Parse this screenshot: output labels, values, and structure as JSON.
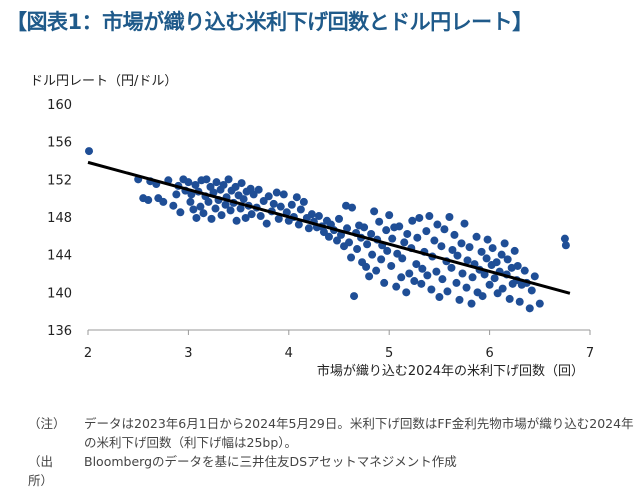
{
  "title": "【図表1：市場が織り込む米利下げ回数とドル円レート】",
  "chart_data": {
    "type": "scatter",
    "ylabel": "ドル円レート（円/ドル）",
    "xlabel": "市場が織り込む2024年の米利下げ回数（回）",
    "xlim": [
      2,
      7
    ],
    "ylim": [
      136,
      160
    ],
    "xticks": [
      2,
      3,
      4,
      5,
      6,
      7
    ],
    "yticks": [
      136,
      140,
      144,
      148,
      152,
      156,
      160
    ],
    "grid": false,
    "point_color": "#1f4e96",
    "trendline": {
      "x": [
        2,
        6.8
      ],
      "y": [
        153.8,
        139.9
      ],
      "color": "#000000"
    },
    "points": [
      [
        2.01,
        155.0
      ],
      [
        2.5,
        152.0
      ],
      [
        2.55,
        150.0
      ],
      [
        2.6,
        149.8
      ],
      [
        2.62,
        151.8
      ],
      [
        2.68,
        151.5
      ],
      [
        2.7,
        150.0
      ],
      [
        2.75,
        149.6
      ],
      [
        2.8,
        151.9
      ],
      [
        2.85,
        149.2
      ],
      [
        2.88,
        150.4
      ],
      [
        2.9,
        151.3
      ],
      [
        2.92,
        148.5
      ],
      [
        2.95,
        152.0
      ],
      [
        2.97,
        150.8
      ],
      [
        3.0,
        151.7
      ],
      [
        3.02,
        149.6
      ],
      [
        3.03,
        150.4
      ],
      [
        3.05,
        148.8
      ],
      [
        3.07,
        151.4
      ],
      [
        3.08,
        147.9
      ],
      [
        3.1,
        150.7
      ],
      [
        3.12,
        149.1
      ],
      [
        3.13,
        151.9
      ],
      [
        3.15,
        148.4
      ],
      [
        3.17,
        150.2
      ],
      [
        3.18,
        152.0
      ],
      [
        3.2,
        149.6
      ],
      [
        3.22,
        151.2
      ],
      [
        3.23,
        147.8
      ],
      [
        3.25,
        150.6
      ],
      [
        3.27,
        148.9
      ],
      [
        3.28,
        151.7
      ],
      [
        3.3,
        149.8
      ],
      [
        3.32,
        150.9
      ],
      [
        3.33,
        148.2
      ],
      [
        3.35,
        151.4
      ],
      [
        3.37,
        149.3
      ],
      [
        3.38,
        150.1
      ],
      [
        3.4,
        152.0
      ],
      [
        3.42,
        148.7
      ],
      [
        3.43,
        150.8
      ],
      [
        3.45,
        149.5
      ],
      [
        3.47,
        151.2
      ],
      [
        3.48,
        147.6
      ],
      [
        3.5,
        150.3
      ],
      [
        3.52,
        148.9
      ],
      [
        3.53,
        151.6
      ],
      [
        3.55,
        149.9
      ],
      [
        3.57,
        147.9
      ],
      [
        3.58,
        150.7
      ],
      [
        3.6,
        149.2
      ],
      [
        3.62,
        151.0
      ],
      [
        3.63,
        148.3
      ],
      [
        3.65,
        150.4
      ],
      [
        3.68,
        149.0
      ],
      [
        3.7,
        150.9
      ],
      [
        3.72,
        148.1
      ],
      [
        3.75,
        149.7
      ],
      [
        3.78,
        147.3
      ],
      [
        3.8,
        150.2
      ],
      [
        3.83,
        148.6
      ],
      [
        3.85,
        149.4
      ],
      [
        3.88,
        150.6
      ],
      [
        3.9,
        147.8
      ],
      [
        3.92,
        149.1
      ],
      [
        3.95,
        150.4
      ],
      [
        3.98,
        148.5
      ],
      [
        4.0,
        147.6
      ],
      [
        4.03,
        149.3
      ],
      [
        4.05,
        148.0
      ],
      [
        4.08,
        150.1
      ],
      [
        4.1,
        147.2
      ],
      [
        4.12,
        148.8
      ],
      [
        4.15,
        149.6
      ],
      [
        4.18,
        147.9
      ],
      [
        4.2,
        146.8
      ],
      [
        4.23,
        148.3
      ],
      [
        4.25,
        147.5
      ],
      [
        4.28,
        146.9
      ],
      [
        4.3,
        148.1
      ],
      [
        4.33,
        147.0
      ],
      [
        4.35,
        146.4
      ],
      [
        4.38,
        147.6
      ],
      [
        4.4,
        145.9
      ],
      [
        4.42,
        147.2
      ],
      [
        4.45,
        146.6
      ],
      [
        4.48,
        145.5
      ],
      [
        4.5,
        147.8
      ],
      [
        4.52,
        146.1
      ],
      [
        4.55,
        144.9
      ],
      [
        4.57,
        149.2
      ],
      [
        4.58,
        146.8
      ],
      [
        4.6,
        145.3
      ],
      [
        4.62,
        143.7
      ],
      [
        4.63,
        149.0
      ],
      [
        4.65,
        139.6
      ],
      [
        4.67,
        146.3
      ],
      [
        4.68,
        144.6
      ],
      [
        4.7,
        147.1
      ],
      [
        4.72,
        145.8
      ],
      [
        4.73,
        143.2
      ],
      [
        4.75,
        146.9
      ],
      [
        4.77,
        142.7
      ],
      [
        4.78,
        145.1
      ],
      [
        4.8,
        141.7
      ],
      [
        4.82,
        146.2
      ],
      [
        4.83,
        144.0
      ],
      [
        4.85,
        148.6
      ],
      [
        4.87,
        142.3
      ],
      [
        4.88,
        145.6
      ],
      [
        4.9,
        147.5
      ],
      [
        4.92,
        143.5
      ],
      [
        4.93,
        145.0
      ],
      [
        4.95,
        141.0
      ],
      [
        4.97,
        146.6
      ],
      [
        4.98,
        144.4
      ],
      [
        5.0,
        148.2
      ],
      [
        5.02,
        142.8
      ],
      [
        5.03,
        145.7
      ],
      [
        5.05,
        146.9
      ],
      [
        5.07,
        140.6
      ],
      [
        5.08,
        144.1
      ],
      [
        5.1,
        147.0
      ],
      [
        5.12,
        141.6
      ],
      [
        5.13,
        143.6
      ],
      [
        5.15,
        145.3
      ],
      [
        5.17,
        140.0
      ],
      [
        5.18,
        146.2
      ],
      [
        5.2,
        142.0
      ],
      [
        5.22,
        144.7
      ],
      [
        5.23,
        147.6
      ],
      [
        5.25,
        141.2
      ],
      [
        5.27,
        143.0
      ],
      [
        5.28,
        145.8
      ],
      [
        5.3,
        147.9
      ],
      [
        5.32,
        140.9
      ],
      [
        5.33,
        142.5
      ],
      [
        5.35,
        144.3
      ],
      [
        5.37,
        146.5
      ],
      [
        5.38,
        141.8
      ],
      [
        5.4,
        148.1
      ],
      [
        5.42,
        140.3
      ],
      [
        5.43,
        143.8
      ],
      [
        5.45,
        145.5
      ],
      [
        5.47,
        142.2
      ],
      [
        5.48,
        147.2
      ],
      [
        5.5,
        139.5
      ],
      [
        5.52,
        144.9
      ],
      [
        5.53,
        141.4
      ],
      [
        5.55,
        146.7
      ],
      [
        5.57,
        143.3
      ],
      [
        5.58,
        140.1
      ],
      [
        5.6,
        148.0
      ],
      [
        5.62,
        142.6
      ],
      [
        5.63,
        144.5
      ],
      [
        5.65,
        146.1
      ],
      [
        5.67,
        141.0
      ],
      [
        5.68,
        143.9
      ],
      [
        5.7,
        139.2
      ],
      [
        5.72,
        145.2
      ],
      [
        5.73,
        142.0
      ],
      [
        5.75,
        147.3
      ],
      [
        5.77,
        140.5
      ],
      [
        5.78,
        143.4
      ],
      [
        5.8,
        144.8
      ],
      [
        5.82,
        138.8
      ],
      [
        5.83,
        141.6
      ],
      [
        5.85,
        143.0
      ],
      [
        5.87,
        145.9
      ],
      [
        5.88,
        140.0
      ],
      [
        5.9,
        142.4
      ],
      [
        5.92,
        144.3
      ],
      [
        5.93,
        139.6
      ],
      [
        5.95,
        141.9
      ],
      [
        5.97,
        143.6
      ],
      [
        5.98,
        145.6
      ],
      [
        6.0,
        140.8
      ],
      [
        6.02,
        142.9
      ],
      [
        6.03,
        144.7
      ],
      [
        6.05,
        141.5
      ],
      [
        6.07,
        143.2
      ],
      [
        6.08,
        139.9
      ],
      [
        6.1,
        142.2
      ],
      [
        6.12,
        144.0
      ],
      [
        6.13,
        140.4
      ],
      [
        6.15,
        145.2
      ],
      [
        6.17,
        141.9
      ],
      [
        6.18,
        143.5
      ],
      [
        6.2,
        139.3
      ],
      [
        6.22,
        142.6
      ],
      [
        6.23,
        140.9
      ],
      [
        6.25,
        144.4
      ],
      [
        6.27,
        141.3
      ],
      [
        6.28,
        142.8
      ],
      [
        6.3,
        139.0
      ],
      [
        6.32,
        140.8
      ],
      [
        6.35,
        142.3
      ],
      [
        6.37,
        141.0
      ],
      [
        6.4,
        138.3
      ],
      [
        6.42,
        140.2
      ],
      [
        6.45,
        141.7
      ],
      [
        6.5,
        138.8
      ],
      [
        6.75,
        145.7
      ],
      [
        6.76,
        145.0
      ]
    ]
  },
  "notes": [
    {
      "label": "（注）",
      "text": "データは2023年6月1日から2024年5月29日。米利下げ回数はFF金利先物市場が織り込む2024年の米利下げ回数（利下げ幅は25bp）。"
    },
    {
      "label": "（出所）",
      "text": "Bloombergのデータを基に三井住友DSアセットマネジメント作成"
    }
  ]
}
